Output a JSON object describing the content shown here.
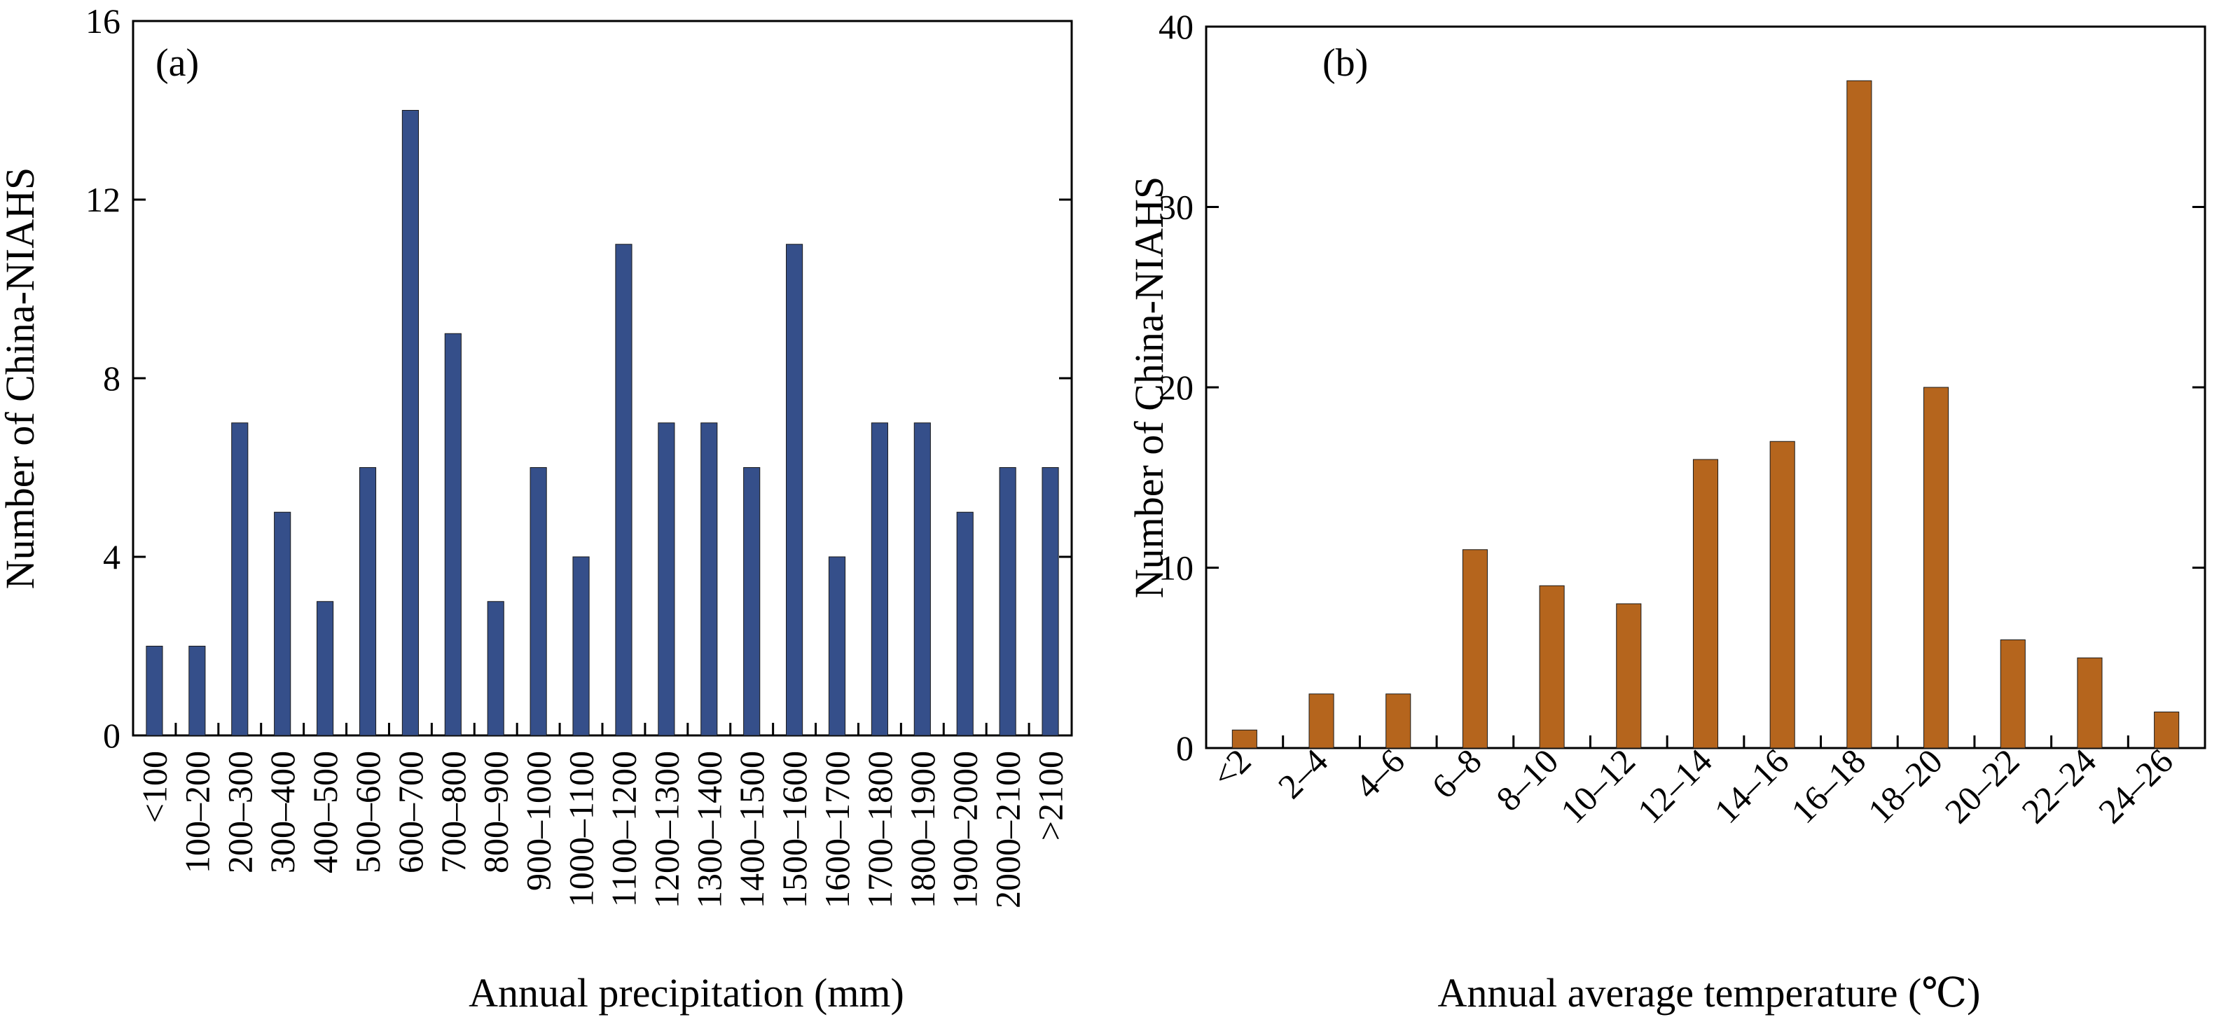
{
  "chart_data": [
    {
      "type": "bar",
      "panel_label": "(a)",
      "xlabel": "Annual precipitation (mm)",
      "ylabel": "Number of China-NIAHS",
      "ylim": [
        0,
        16
      ],
      "yticks": [
        0,
        4,
        8,
        12,
        16
      ],
      "grid": false,
      "color": "#354f8a",
      "categories": [
        "<100",
        "100–200",
        "200–300",
        "300–400",
        "400–500",
        "500–600",
        "600–700",
        "700–800",
        "800–900",
        "900–1000",
        "1000–1100",
        "1100–1200",
        "1200–1300",
        "1300–1400",
        "1400–1500",
        "1500–1600",
        "1600–1700",
        "1700–1800",
        "1800–1900",
        "1900–2000",
        "2000–2100",
        ">2100"
      ],
      "values": [
        2,
        2,
        7,
        5,
        3,
        6,
        14,
        9,
        3,
        6,
        4,
        11,
        7,
        7,
        6,
        11,
        4,
        7,
        7,
        5,
        6,
        6
      ]
    },
    {
      "type": "bar",
      "panel_label": "(b)",
      "xlabel": "Annual average temperature (℃)",
      "ylabel": "Number of China-NIAHS",
      "ylim": [
        0,
        40
      ],
      "yticks": [
        0,
        10,
        20,
        30,
        40
      ],
      "grid": false,
      "color": "#b5651d",
      "categories": [
        "<2",
        "2–4",
        "4–6",
        "6–8",
        "8–10",
        "10–12",
        "12–14",
        "14–16",
        "16–18",
        "18–20",
        "20–22",
        "22–24",
        "24–26"
      ],
      "values": [
        1,
        3,
        3,
        11,
        9,
        8,
        16,
        17,
        37,
        20,
        6,
        5,
        2
      ]
    }
  ]
}
